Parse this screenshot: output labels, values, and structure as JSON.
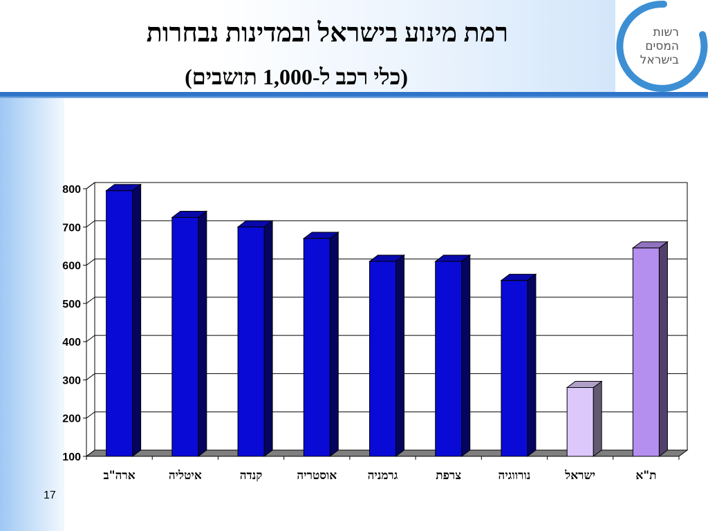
{
  "slide": {
    "title": "רמת מינוע בישראל ובמדינות נבחרות",
    "subtitle": "(כלי רכב ל-1,000 תושבים)",
    "page_number": "17",
    "logo_text": [
      "רשות",
      "המסים",
      "בישראל"
    ]
  },
  "colors": {
    "bar_default": "#0a0ad6",
    "bar_israel": "#dcc8fb",
    "bar_telaviv": "#b48ff0",
    "header_rule": "#2e74c8",
    "logo_ring": "#3d8fd3"
  },
  "chart_data": {
    "type": "bar",
    "categories": [
      "ארה\"ב",
      "איטליה",
      "קנדה",
      "אוסטריה",
      "גרמניה",
      "צרפת",
      "נורווגיה",
      "ישראל",
      "ת\"א"
    ],
    "values": [
      795,
      725,
      700,
      670,
      610,
      610,
      560,
      280,
      645
    ],
    "ylim": [
      100,
      800
    ],
    "yticks": [
      100,
      200,
      300,
      400,
      500,
      600,
      700,
      800
    ],
    "grid": true,
    "style": "3d"
  }
}
